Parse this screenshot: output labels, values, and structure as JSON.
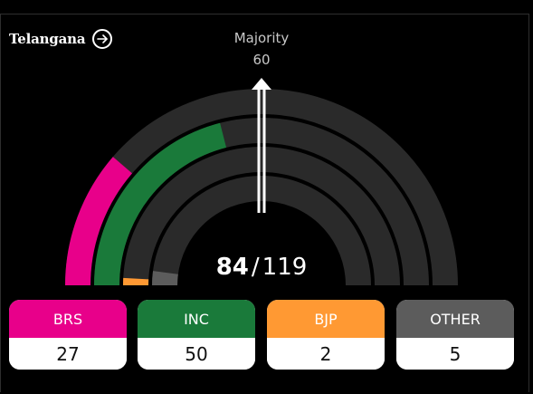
{
  "header": {
    "state": "Telangana",
    "arrow_icon": "arrow-right-circle-icon"
  },
  "majority": {
    "label": "Majority",
    "value": "60"
  },
  "summary": {
    "won": "84",
    "separator": "/",
    "total": "119"
  },
  "colors": {
    "background": "#000000",
    "track": "#2a2a2a",
    "BRS": "#e8008a",
    "INC": "#1a7a3a",
    "BJP": "#ff9933",
    "OTHER": "#5c5c5c"
  },
  "chart_data": {
    "type": "semicircle-rings",
    "total_seats": 119,
    "majority": 60,
    "series": [
      {
        "name": "BRS",
        "value": 27,
        "color": "#e8008a"
      },
      {
        "name": "INC",
        "value": 50,
        "color": "#1a7a3a"
      },
      {
        "name": "BJP",
        "value": 2,
        "color": "#ff9933"
      },
      {
        "name": "OTHER",
        "value": 5,
        "color": "#5c5c5c"
      }
    ]
  },
  "parties": [
    {
      "name": "BRS",
      "seats": "27"
    },
    {
      "name": "INC",
      "seats": "50"
    },
    {
      "name": "BJP",
      "seats": "2"
    },
    {
      "name": "OTHER",
      "seats": "5"
    }
  ]
}
